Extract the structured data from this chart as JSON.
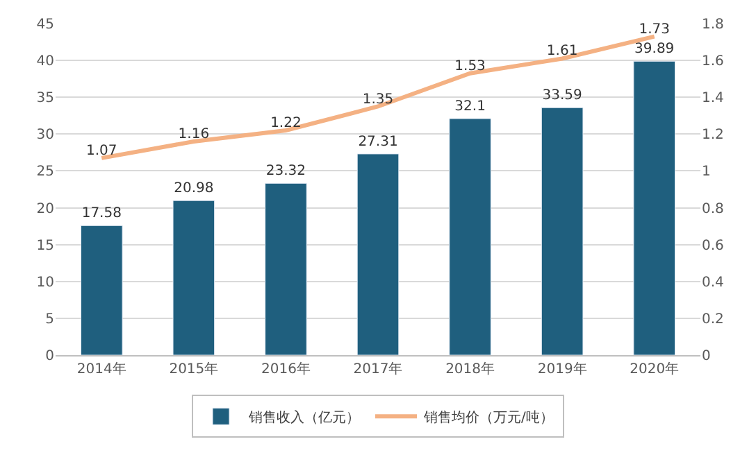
{
  "chart_data": {
    "type": "bar",
    "categories": [
      "2014年",
      "2015年",
      "2016年",
      "2017年",
      "2018年",
      "2019年",
      "2020年"
    ],
    "series": [
      {
        "name": "销售收入（亿元）",
        "color": "#1f5f7e",
        "values": [
          17.58,
          20.98,
          23.32,
          27.31,
          32.1,
          33.59,
          39.89
        ]
      },
      {
        "name": "销售均价（万元/吨）",
        "type": "line",
        "axis": "y2",
        "color": "#f4b183",
        "values": [
          1.07,
          1.16,
          1.22,
          1.35,
          1.53,
          1.61,
          1.73
        ]
      }
    ],
    "ylim": [
      0,
      45
    ],
    "yticks": [
      0,
      5,
      10,
      15,
      20,
      25,
      30,
      35,
      40,
      45
    ],
    "y2lim": [
      0,
      1.8
    ],
    "y2ticks": [
      0,
      0.2,
      0.4,
      0.6,
      0.8,
      1,
      1.2,
      1.4,
      1.6,
      1.8
    ],
    "data_labels": true,
    "grid": "y",
    "legend": "bottom",
    "marker": "none",
    "line_style": "solid"
  }
}
